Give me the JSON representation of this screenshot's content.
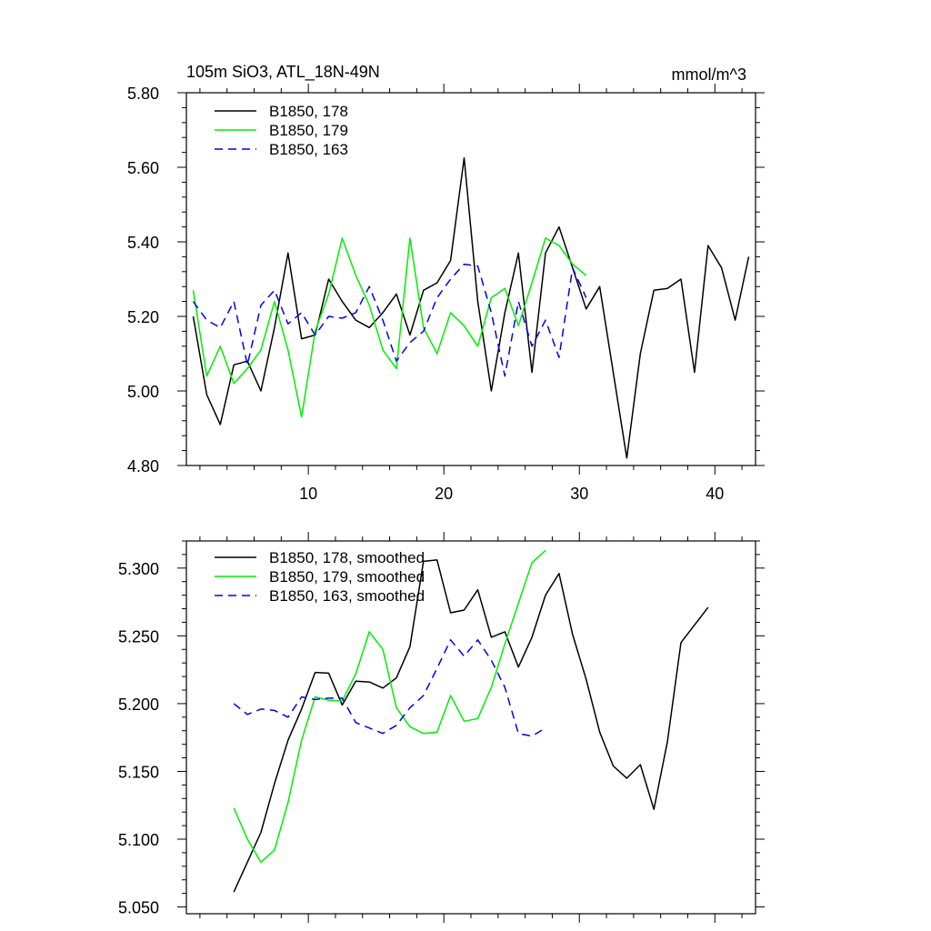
{
  "chart_data": [
    {
      "type": "line",
      "title": "105m SiO3, ATL_18N-49N",
      "units": "mmol/m^3",
      "xlim": [
        1,
        43
      ],
      "ylim": [
        4.8,
        5.8
      ],
      "xticks": [
        10,
        20,
        30,
        40
      ],
      "xtick_labels": [
        "10",
        "20",
        "30",
        "40"
      ],
      "yticks": [
        4.8,
        5.0,
        5.2,
        5.4,
        5.6,
        5.8
      ],
      "ytick_labels": [
        "4.80",
        "5.00",
        "5.20",
        "5.40",
        "5.60",
        "5.80"
      ],
      "legend_position": "top-left",
      "series": [
        {
          "name": "B1850, 178",
          "color": "#000000",
          "dash": "solid",
          "x": [
            1.5,
            2.5,
            3.5,
            4.5,
            5.5,
            6.5,
            7.5,
            8.5,
            9.5,
            10.5,
            11.5,
            12.5,
            13.5,
            14.5,
            15.5,
            16.5,
            17.5,
            18.5,
            19.5,
            20.5,
            21.5,
            22.5,
            23.5,
            24.5,
            25.5,
            26.5,
            27.5,
            28.5,
            29.5,
            30.5,
            31.5,
            32.5,
            33.5,
            34.5,
            35.5,
            36.5,
            37.5,
            38.5,
            39.5,
            40.5,
            41.5,
            42.5
          ],
          "values": [
            5.2,
            4.99,
            4.91,
            5.07,
            5.08,
            5.0,
            5.17,
            5.37,
            5.14,
            5.15,
            5.3,
            5.24,
            5.19,
            5.17,
            5.21,
            5.26,
            5.15,
            5.27,
            5.29,
            5.35,
            5.625,
            5.24,
            5.0,
            5.21,
            5.37,
            5.05,
            5.37,
            5.44,
            5.33,
            5.22,
            5.28,
            5.05,
            4.82,
            5.1,
            5.27,
            5.275,
            5.3,
            5.05,
            5.39,
            5.33,
            5.19,
            5.36
          ]
        },
        {
          "name": "B1850, 179",
          "color": "#00ee00",
          "dash": "solid",
          "x": [
            1.5,
            2.5,
            3.5,
            4.5,
            5.5,
            6.5,
            7.5,
            8.5,
            9.5,
            10.5,
            11.5,
            12.5,
            13.5,
            14.5,
            15.5,
            16.5,
            17.5,
            18.5,
            19.5,
            20.5,
            21.5,
            22.5,
            23.5,
            24.5,
            25.5,
            26.5,
            27.5,
            28.5,
            29.5,
            30.5
          ],
          "values": [
            5.27,
            5.04,
            5.12,
            5.02,
            5.06,
            5.11,
            5.24,
            5.11,
            4.93,
            5.16,
            5.26,
            5.41,
            5.31,
            5.23,
            5.11,
            5.06,
            5.41,
            5.17,
            5.1,
            5.21,
            5.175,
            5.12,
            5.25,
            5.275,
            5.175,
            5.29,
            5.41,
            5.39,
            5.34,
            5.31
          ]
        },
        {
          "name": "B1850, 163",
          "color": "#0000ee",
          "dash": "dashed",
          "x": [
            1.5,
            2.5,
            3.5,
            4.5,
            5.5,
            6.5,
            7.5,
            8.5,
            9.5,
            10.5,
            11.5,
            12.5,
            13.5,
            14.5,
            15.5,
            16.5,
            17.5,
            18.5,
            19.5,
            20.5,
            21.5,
            22.5,
            23.5,
            24.5,
            25.5,
            26.5,
            27.5,
            28.5,
            29.5,
            30.5
          ],
          "values": [
            5.24,
            5.19,
            5.17,
            5.24,
            5.07,
            5.23,
            5.27,
            5.18,
            5.21,
            5.15,
            5.2,
            5.195,
            5.21,
            5.28,
            5.19,
            5.08,
            5.13,
            5.16,
            5.25,
            5.3,
            5.34,
            5.335,
            5.21,
            5.04,
            5.24,
            5.12,
            5.19,
            5.09,
            5.33,
            5.25
          ]
        }
      ]
    },
    {
      "type": "line",
      "title": "",
      "xlim": [
        1,
        43
      ],
      "ylim": [
        5.045,
        5.32
      ],
      "xticks": [
        10,
        20,
        30,
        40
      ],
      "xtick_labels": [
        "",
        "",
        "",
        ""
      ],
      "yticks": [
        5.05,
        5.1,
        5.15,
        5.2,
        5.25,
        5.3
      ],
      "ytick_labels": [
        "5.050",
        "5.100",
        "5.150",
        "5.200",
        "5.250",
        "5.300"
      ],
      "legend_position": "top-left",
      "series": [
        {
          "name": "B1850, 178, smoothed",
          "color": "#000000",
          "dash": "solid",
          "x": [
            4.5,
            5.5,
            6.5,
            7.5,
            8.5,
            9.5,
            10.5,
            11.5,
            12.5,
            13.5,
            14.5,
            15.5,
            16.5,
            17.5,
            18.5,
            19.5,
            20.5,
            21.5,
            22.5,
            23.5,
            24.5,
            25.5,
            26.5,
            27.5,
            28.5,
            29.5,
            30.5,
            31.5,
            32.5,
            33.5,
            34.5,
            35.5,
            36.5,
            37.5,
            38.5,
            39.5
          ],
          "values": [
            5.061,
            5.083,
            5.105,
            5.141,
            5.173,
            5.196,
            5.223,
            5.2225,
            5.199,
            5.2165,
            5.216,
            5.2115,
            5.219,
            5.242,
            5.305,
            5.306,
            5.267,
            5.269,
            5.284,
            5.249,
            5.253,
            5.227,
            5.249,
            5.28,
            5.296,
            5.251,
            5.218,
            5.179,
            5.154,
            5.145,
            5.155,
            5.122,
            5.172,
            5.245,
            5.258,
            5.271
          ]
        },
        {
          "name": "B1850, 179, smoothed",
          "color": "#00ee00",
          "dash": "solid",
          "x": [
            4.5,
            5.5,
            6.5,
            7.5,
            8.5,
            9.5,
            10.5,
            11.5,
            12.5,
            13.5,
            14.5,
            15.5,
            16.5,
            17.5,
            18.5,
            19.5,
            20.5,
            21.5,
            22.5,
            23.5,
            24.5,
            25.5,
            26.5,
            27.5
          ],
          "values": [
            5.123,
            5.1,
            5.083,
            5.092,
            5.127,
            5.173,
            5.205,
            5.2025,
            5.202,
            5.222,
            5.253,
            5.24,
            5.197,
            5.183,
            5.178,
            5.179,
            5.206,
            5.187,
            5.189,
            5.212,
            5.244,
            5.274,
            5.304,
            5.313
          ]
        },
        {
          "name": "B1850, 163, smoothed",
          "color": "#0000ee",
          "dash": "dashed",
          "x": [
            4.5,
            5.5,
            6.5,
            7.5,
            8.5,
            9.5,
            10.5,
            11.5,
            12.5,
            13.5,
            14.5,
            15.5,
            16.5,
            17.5,
            18.5,
            19.5,
            20.5,
            21.5,
            22.5,
            23.5,
            24.5,
            25.5,
            26.5,
            27.5
          ],
          "values": [
            5.2,
            5.192,
            5.196,
            5.195,
            5.19,
            5.205,
            5.203,
            5.204,
            5.204,
            5.186,
            5.182,
            5.178,
            5.184,
            5.197,
            5.206,
            5.226,
            5.247,
            5.235,
            5.247,
            5.232,
            5.212,
            5.178,
            5.176,
            5.182
          ]
        }
      ]
    }
  ]
}
